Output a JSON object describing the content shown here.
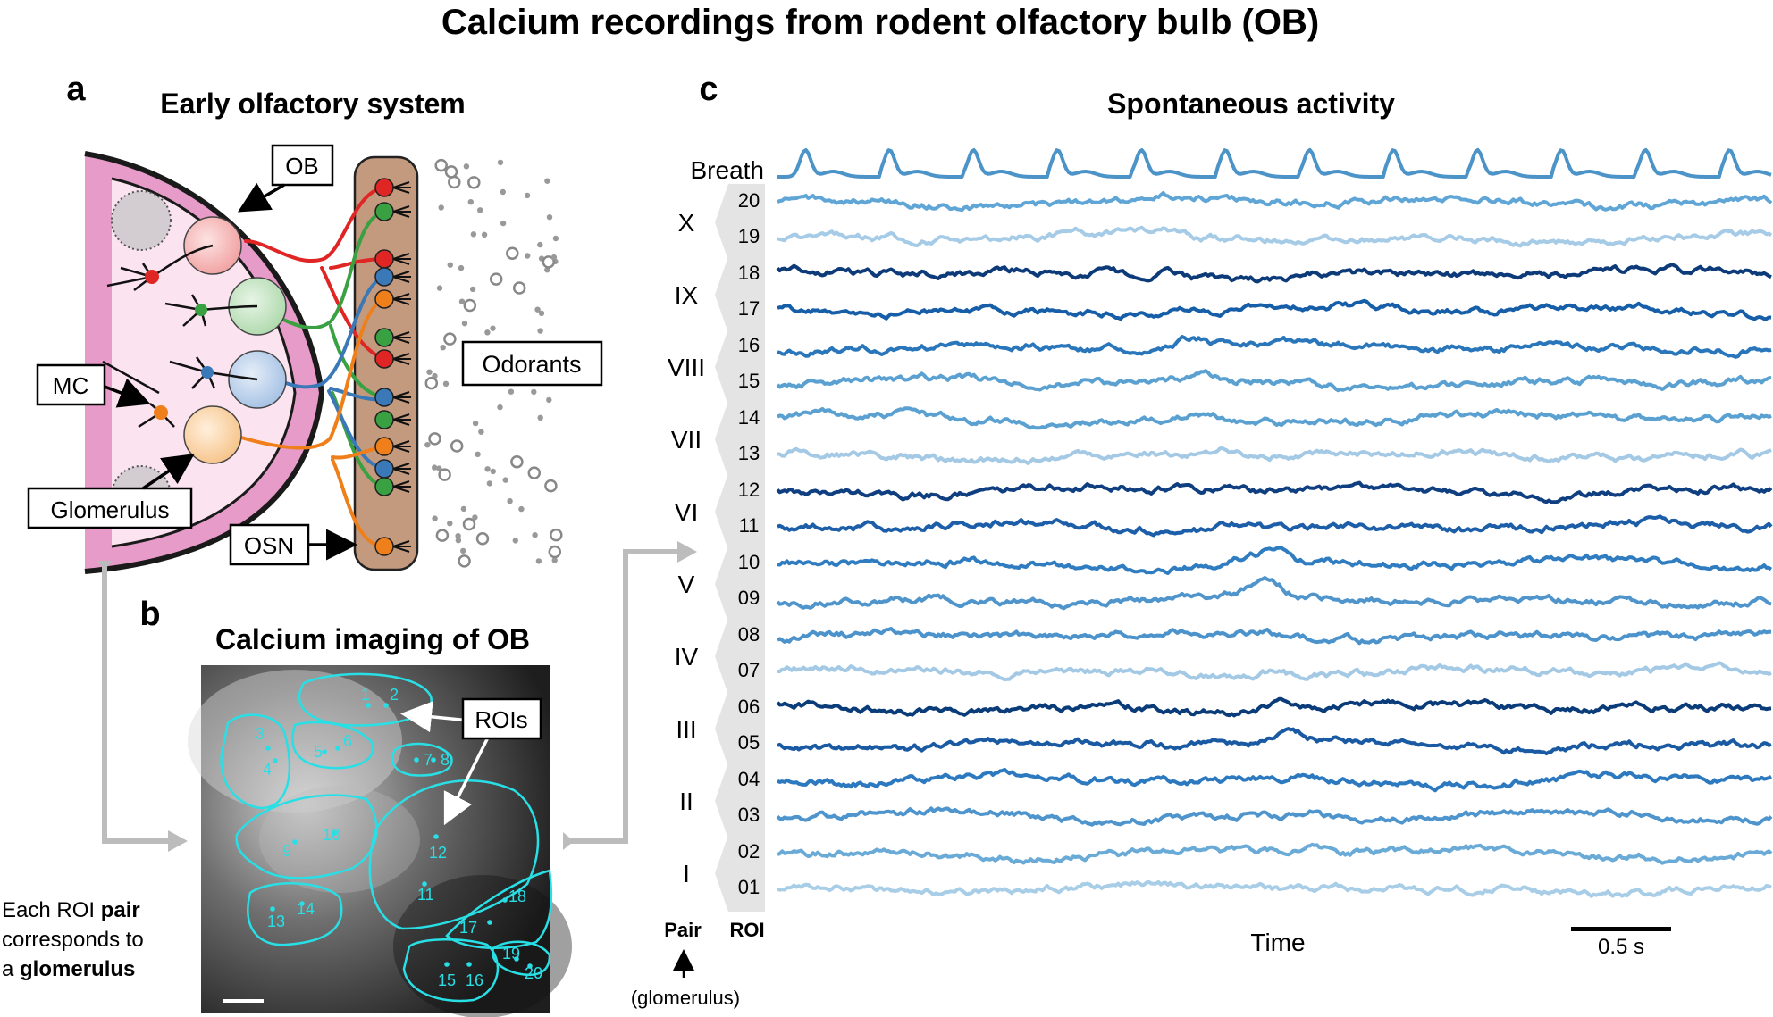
{
  "title": "Calcium recordings from rodent olfactory bulb (OB)",
  "panel_a": {
    "letter": "a",
    "title": "Early olfactory system",
    "labels": {
      "ob": "OB",
      "mc": "MC",
      "glomerulus": "Glomerulus",
      "osn": "OSN",
      "odorants": "Odorants"
    }
  },
  "panel_b": {
    "letter": "b",
    "title": "Calcium imaging of OB",
    "rois_label": "ROIs",
    "roi_numbers": [
      "1",
      "2",
      "3",
      "4",
      "5",
      "6",
      "7",
      "8",
      "9",
      "10",
      "11",
      "12",
      "13",
      "14",
      "15",
      "16",
      "17",
      "18",
      "19",
      "20"
    ],
    "note": {
      "line1": "Each ROI ",
      "pair": "pair",
      "line2": "corresponds to",
      "line3_pre": "a ",
      "glomerulus": "glomerulus"
    }
  },
  "panel_c": {
    "letter": "c",
    "title": "Spontaneous activity",
    "breath_label": "Breath",
    "pair_label": "Pair",
    "roi_label": "ROI",
    "glomerulus_note": "(glomerulus)",
    "time_label": "Time",
    "scale_label": "0.5 s",
    "pairs": [
      {
        "roman": "X",
        "rois": [
          "20",
          "19"
        ]
      },
      {
        "roman": "IX",
        "rois": [
          "18",
          "17"
        ]
      },
      {
        "roman": "VIII",
        "rois": [
          "16",
          "15"
        ]
      },
      {
        "roman": "VII",
        "rois": [
          "14",
          "13"
        ]
      },
      {
        "roman": "VI",
        "rois": [
          "12",
          "11"
        ]
      },
      {
        "roman": "V",
        "rois": [
          "10",
          "09"
        ]
      },
      {
        "roman": "IV",
        "rois": [
          "08",
          "07"
        ]
      },
      {
        "roman": "III",
        "rois": [
          "06",
          "05"
        ]
      },
      {
        "roman": "II",
        "rois": [
          "04",
          "03"
        ]
      },
      {
        "roman": "I",
        "rois": [
          "02",
          "01"
        ]
      }
    ],
    "trace_colors": [
      "#5fa5d6",
      "#a5cbe6",
      "#0d3a78",
      "#175ea8",
      "#2a76bb",
      "#5aa0d1",
      "#5aa0d1",
      "#a3c9e5",
      "#0f3f80",
      "#1d5ea8",
      "#2f7cc0",
      "#4f95cc",
      "#4c93cc",
      "#a3c9e5",
      "#0b3c7a",
      "#1a5aa3",
      "#2c79bf",
      "#4e94cd",
      "#6aaad7",
      "#a8cde7"
    ],
    "breath_color": "#4c93c8"
  },
  "colors": {
    "pink_dark": "#e79bc9",
    "pink_light": "#fbe3f0",
    "osn_band": "#c49a7f",
    "red": "#e02624",
    "green": "#3aa142",
    "blue": "#3a78b8",
    "orange": "#ef7f1a",
    "cyan": "#29dfe6",
    "arrow_gray": "#bcbcbc"
  }
}
